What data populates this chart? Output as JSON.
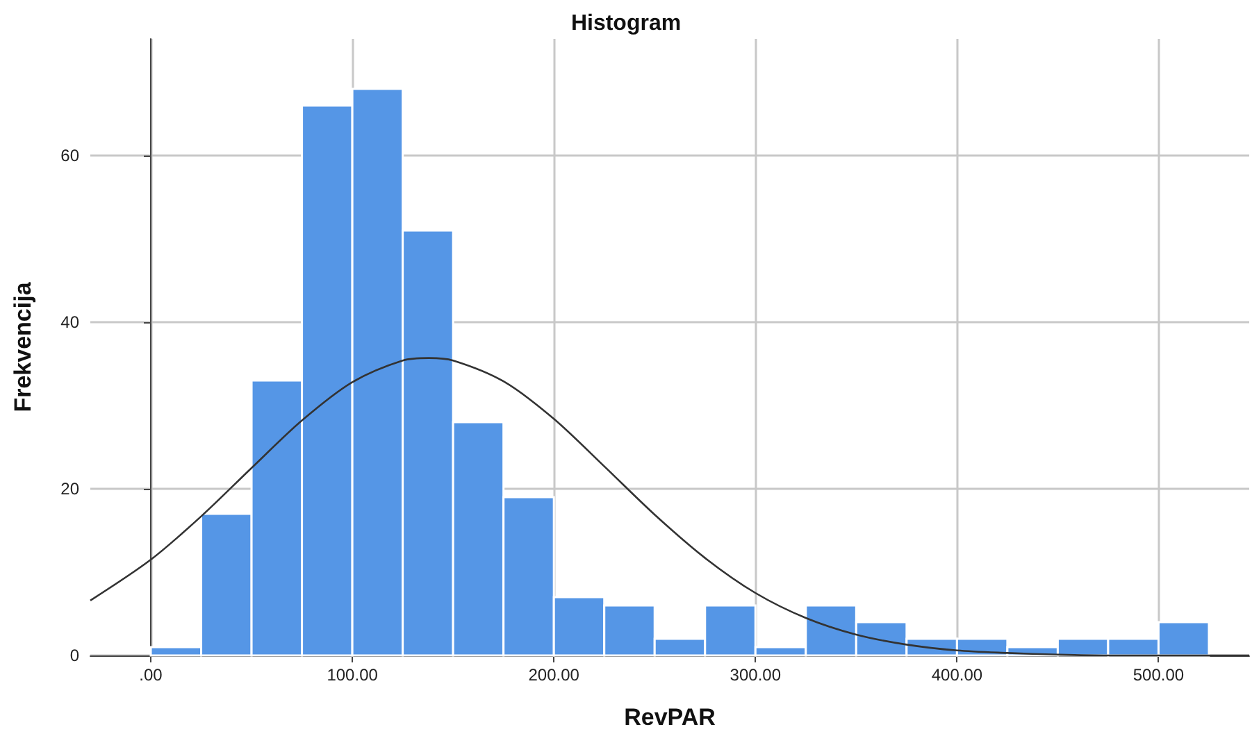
{
  "chart_data": {
    "type": "histogram",
    "title": "Histogram",
    "xlabel": "RevPAR",
    "ylabel": "Frekvencija",
    "bins": [
      0,
      25,
      50,
      75,
      100,
      125,
      150,
      175,
      200,
      225,
      250,
      275,
      300,
      325,
      350,
      375,
      400,
      425,
      450,
      475,
      500,
      525
    ],
    "values": [
      1,
      17,
      33,
      66,
      68,
      51,
      28,
      19,
      7,
      6,
      2,
      6,
      1,
      6,
      4,
      2,
      2,
      1,
      2,
      2,
      4
    ],
    "color": "#5596e6",
    "series": [
      {
        "type": "line",
        "color": "#333333",
        "marker": "none",
        "x": [
          -30,
          0,
          25,
          50,
          75,
          100,
          125,
          138,
          150,
          175,
          200,
          225,
          250,
          275,
          300,
          325,
          350,
          375,
          400,
          425,
          450,
          475,
          500,
          545
        ],
        "values": [
          6.6,
          11.5,
          16.7,
          22.5,
          28.2,
          32.8,
          35.4,
          35.7,
          35.4,
          32.9,
          28.4,
          22.7,
          16.9,
          11.7,
          7.5,
          4.5,
          2.5,
          1.3,
          0.6,
          0.3,
          0.1,
          0,
          0,
          0
        ]
      }
    ],
    "xlim": [
      -30,
      545
    ],
    "xticks": [
      {
        "value": 0,
        "label": ".00"
      },
      {
        "value": 100,
        "label": "100.00"
      },
      {
        "value": 200,
        "label": "200.00"
      },
      {
        "value": 300,
        "label": "300.00"
      },
      {
        "value": 400,
        "label": "400.00"
      },
      {
        "value": 500,
        "label": "500.00"
      }
    ],
    "ylim": [
      0,
      74
    ],
    "yticks": [
      0,
      20,
      40,
      60
    ],
    "grid": true
  }
}
